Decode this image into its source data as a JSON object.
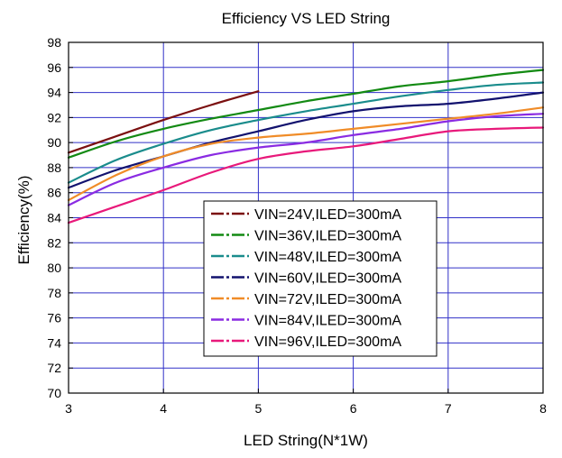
{
  "chart_data": {
    "type": "line",
    "title": "Efficiency VS LED String",
    "xlabel": "LED String(N*1W)",
    "ylabel": "Efficiency(%)",
    "xlim": [
      3,
      8
    ],
    "ylim": [
      70,
      98
    ],
    "x_ticks": [
      3,
      4,
      5,
      6,
      7,
      8
    ],
    "y_ticks": [
      70,
      72,
      74,
      76,
      78,
      80,
      82,
      84,
      86,
      88,
      90,
      92,
      94,
      96,
      98
    ],
    "grid": true,
    "legend_position": "center",
    "series": [
      {
        "name": "VIN=24V,ILED=300mA",
        "color": "#7b1010",
        "x": [
          3,
          3.5,
          4,
          4.5,
          5
        ],
        "y": [
          89.2,
          90.5,
          91.8,
          93.0,
          94.1
        ]
      },
      {
        "name": "VIN=36V,ILED=300mA",
        "color": "#138a13",
        "x": [
          3,
          3.5,
          4,
          4.5,
          5,
          5.5,
          6,
          6.5,
          7,
          7.5,
          8
        ],
        "y": [
          88.8,
          90.1,
          91.1,
          91.9,
          92.6,
          93.3,
          93.9,
          94.5,
          94.9,
          95.4,
          95.8
        ]
      },
      {
        "name": "VIN=48V,ILED=300mA",
        "color": "#1a8c8c",
        "x": [
          3,
          3.5,
          4,
          4.5,
          5,
          5.5,
          6,
          6.5,
          7,
          7.5,
          8
        ],
        "y": [
          86.8,
          88.6,
          89.9,
          91.0,
          91.8,
          92.5,
          93.1,
          93.7,
          94.2,
          94.6,
          94.8
        ]
      },
      {
        "name": "VIN=60V,ILED=300mA",
        "color": "#12126e",
        "x": [
          3,
          3.5,
          4,
          4.5,
          5,
          5.5,
          6,
          6.5,
          7,
          7.5,
          8
        ],
        "y": [
          86.4,
          87.8,
          88.9,
          90.0,
          90.9,
          91.8,
          92.5,
          92.9,
          93.1,
          93.5,
          94.0
        ]
      },
      {
        "name": "VIN=72V,ILED=300mA",
        "color": "#f08c28",
        "x": [
          3,
          3.5,
          4,
          4.5,
          5,
          5.5,
          6,
          6.5,
          7,
          7.5,
          8
        ],
        "y": [
          85.4,
          87.4,
          88.9,
          89.9,
          90.4,
          90.7,
          91.1,
          91.5,
          91.9,
          92.3,
          92.8
        ]
      },
      {
        "name": "VIN=84V,ILED=300mA",
        "color": "#8a2be2",
        "x": [
          3,
          3.5,
          4,
          4.5,
          5,
          5.5,
          6,
          6.5,
          7,
          7.5,
          8
        ],
        "y": [
          85.0,
          86.8,
          88.0,
          89.0,
          89.6,
          90.0,
          90.6,
          91.1,
          91.7,
          92.1,
          92.3
        ]
      },
      {
        "name": "VIN=96V,ILED=300mA",
        "color": "#e8197a",
        "x": [
          3,
          3.5,
          4,
          4.5,
          5,
          5.5,
          6,
          6.5,
          7,
          7.5,
          8
        ],
        "y": [
          83.6,
          84.9,
          86.2,
          87.6,
          88.7,
          89.3,
          89.7,
          90.3,
          90.9,
          91.1,
          91.2
        ]
      }
    ]
  }
}
